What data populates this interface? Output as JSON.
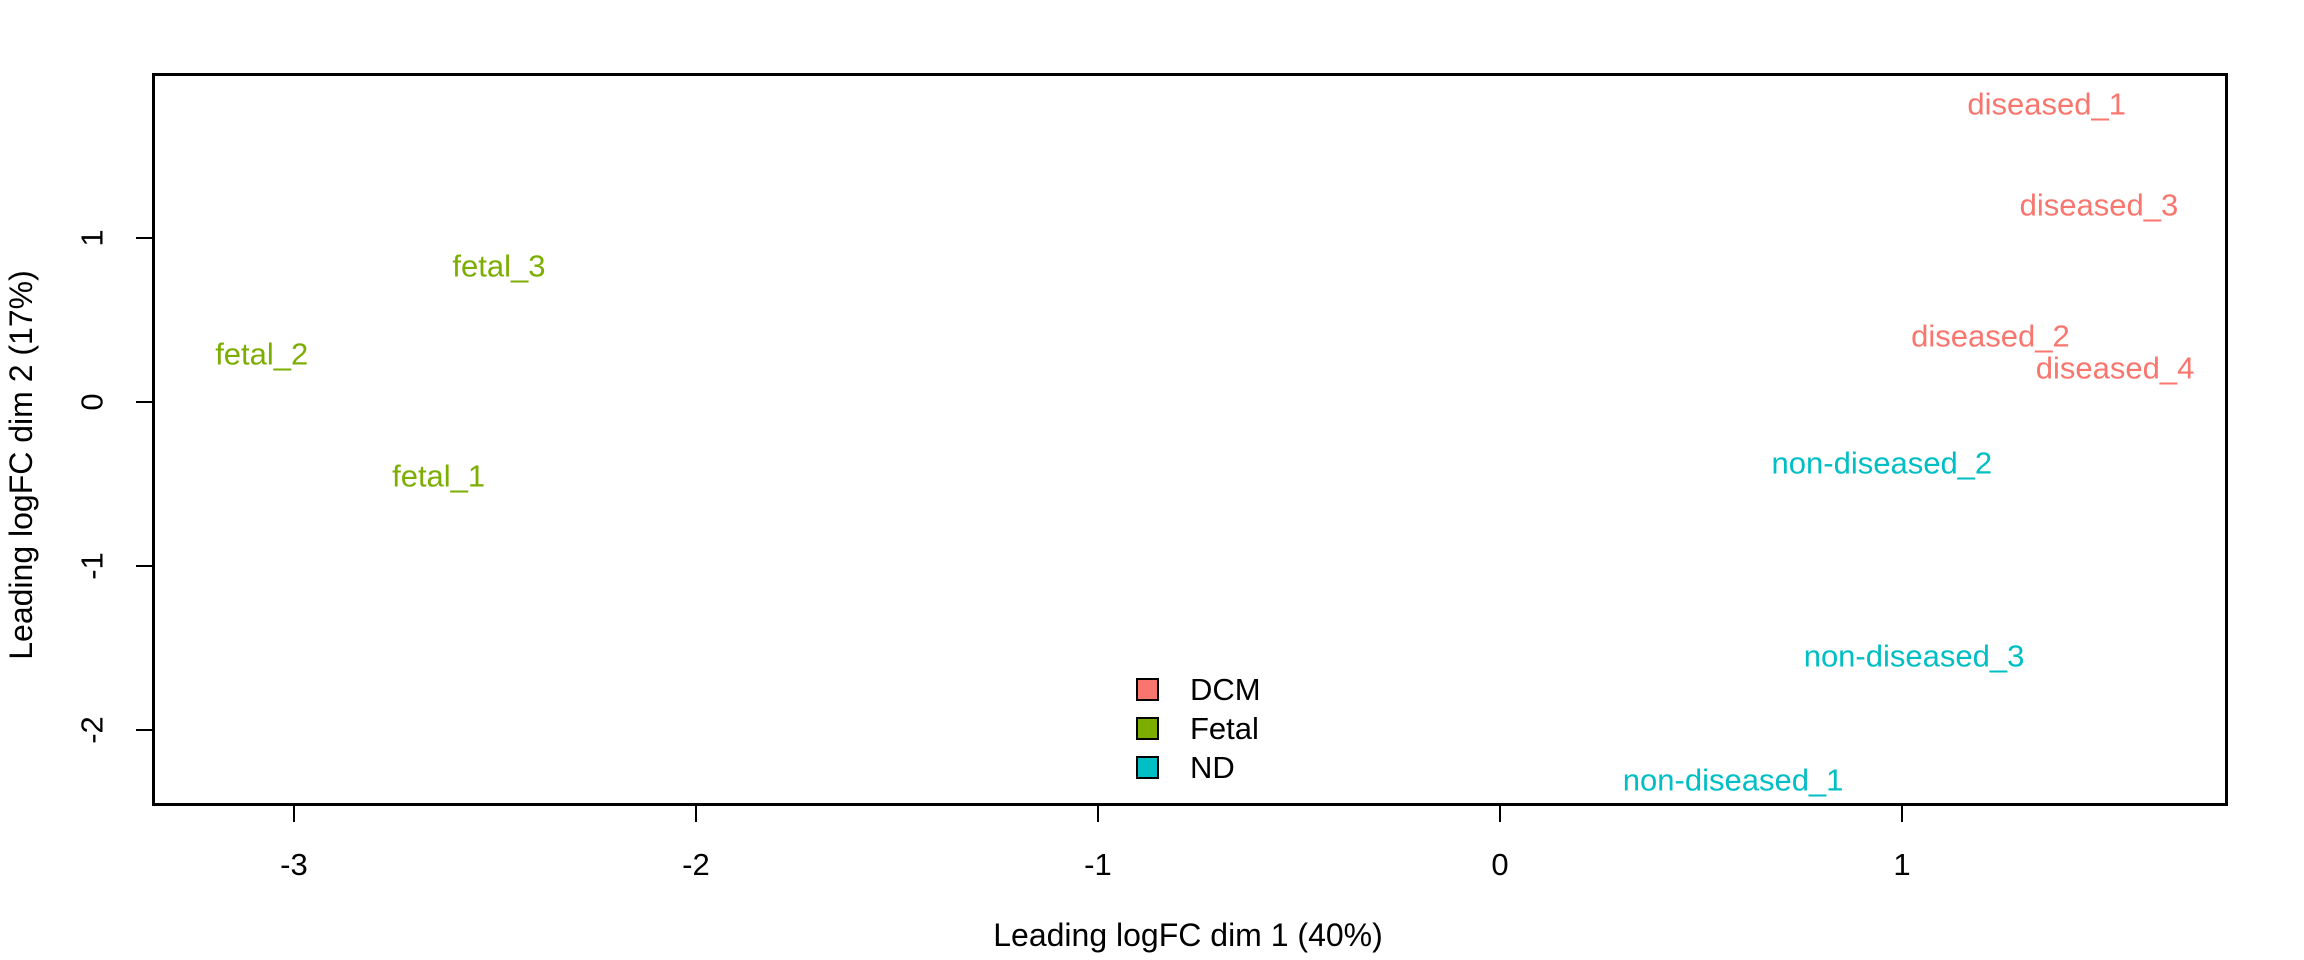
{
  "figure": {
    "background_color": "#ffffff",
    "axis_color": "#000000",
    "text_color": "#000000"
  },
  "chart_data": {
    "type": "scatter",
    "subtype": "mds-plot-text-labels",
    "title": "",
    "xlabel": "Leading logFC dim 1 (40%)",
    "ylabel": "Leading logFC dim 2 (17%)",
    "xlim": [
      -3.353,
      1.811
    ],
    "ylim": [
      -2.466,
      2.008
    ],
    "x_ticks": [
      -3,
      -2,
      -1,
      0,
      1
    ],
    "y_ticks": [
      -2,
      -1,
      0,
      1
    ],
    "grid": false,
    "points_rendered_as": "colored text labels",
    "series": [
      {
        "name": "DCM",
        "color": "#F8766D",
        "points": [
          {
            "label": "diseased_1",
            "x": 1.36,
            "y": 1.82
          },
          {
            "label": "diseased_3",
            "x": 1.49,
            "y": 1.2
          },
          {
            "label": "diseased_2",
            "x": 1.22,
            "y": 0.4
          },
          {
            "label": "diseased_4",
            "x": 1.53,
            "y": 0.21
          }
        ]
      },
      {
        "name": "Fetal",
        "color": "#7CAE00",
        "points": [
          {
            "label": "fetal_3",
            "x": -2.49,
            "y": 0.83
          },
          {
            "label": "fetal_2",
            "x": -3.08,
            "y": 0.29
          },
          {
            "label": "fetal_1",
            "x": -2.64,
            "y": -0.45
          }
        ]
      },
      {
        "name": "ND",
        "color": "#00BFC4",
        "points": [
          {
            "label": "non-diseased_2",
            "x": 0.95,
            "y": -0.37
          },
          {
            "label": "non-diseased_3",
            "x": 1.03,
            "y": -1.55
          },
          {
            "label": "non-diseased_1",
            "x": 0.58,
            "y": -2.31
          }
        ]
      }
    ],
    "legend": {
      "position": "inside bottom-center-left of plot",
      "entries": [
        {
          "label": "DCM",
          "color": "#F8766D"
        },
        {
          "label": "Fetal",
          "color": "#7CAE00"
        },
        {
          "label": "ND",
          "color": "#00BFC4"
        }
      ]
    }
  }
}
